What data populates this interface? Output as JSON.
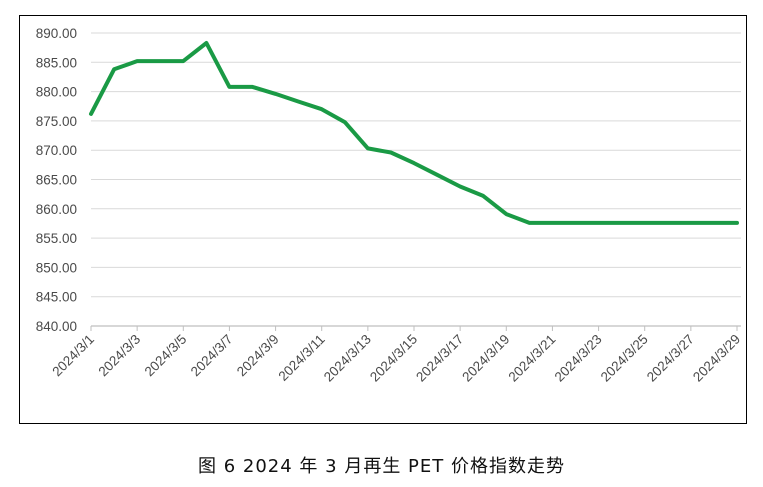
{
  "caption": "图 6  2024 年 3 月再生 PET 价格指数走势",
  "colors": {
    "line": "#1a9a45",
    "grid": "#d9d9d9",
    "axis": "#bfbfbf",
    "text": "#4a4a4a"
  },
  "chart_data": {
    "type": "line",
    "title": "",
    "xlabel": "",
    "ylabel": "",
    "ylim": [
      840,
      890
    ],
    "y_ticks": [
      "840.00",
      "845.00",
      "850.00",
      "855.00",
      "860.00",
      "865.00",
      "870.00",
      "875.00",
      "880.00",
      "885.00",
      "890.00"
    ],
    "x_tick_labels": [
      "2024/3/1",
      "2024/3/3",
      "2024/3/5",
      "2024/3/7",
      "2024/3/9",
      "2024/3/11",
      "2024/3/13",
      "2024/3/15",
      "2024/3/17",
      "2024/3/19",
      "2024/3/21",
      "2024/3/23",
      "2024/3/25",
      "2024/3/27",
      "2024/3/29"
    ],
    "grid": true,
    "legend": "none",
    "series": [
      {
        "x": [
          "2024/3/1",
          "2024/3/2",
          "2024/3/3",
          "2024/3/4",
          "2024/3/5",
          "2024/3/6",
          "2024/3/7",
          "2024/3/8",
          "2024/3/9",
          "2024/3/10",
          "2024/3/11",
          "2024/3/12",
          "2024/3/13",
          "2024/3/14",
          "2024/3/15",
          "2024/3/16",
          "2024/3/17",
          "2024/3/18",
          "2024/3/19",
          "2024/3/20",
          "2024/3/21",
          "2024/3/22",
          "2024/3/23",
          "2024/3/24",
          "2024/3/25",
          "2024/3/26",
          "2024/3/27",
          "2024/3/28",
          "2024/3/29"
        ],
        "values": [
          876.2,
          883.8,
          885.2,
          885.2,
          885.2,
          888.3,
          880.8,
          880.8,
          879.6,
          878.3,
          877.0,
          874.8,
          870.3,
          869.6,
          867.8,
          865.8,
          863.8,
          862.2,
          859.1,
          857.6,
          857.6,
          857.6,
          857.6,
          857.6,
          857.6,
          857.6,
          857.6,
          857.6,
          857.6
        ]
      }
    ]
  }
}
